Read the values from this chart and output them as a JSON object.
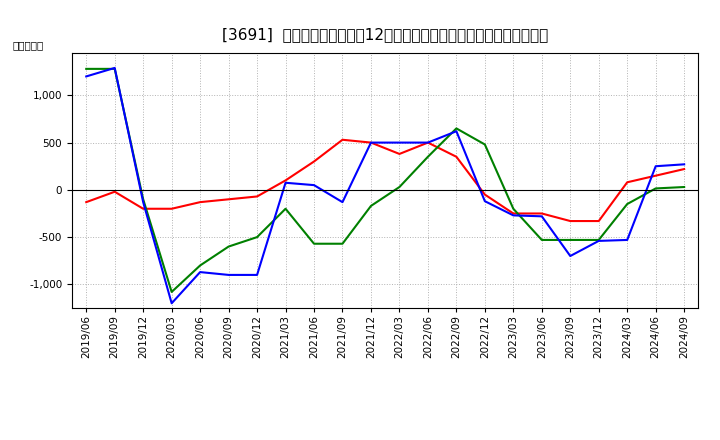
{
  "title": "[3691]  キャッシュフローの12か月移動合計の対前年同期増減額の推移",
  "ylabel": "（百万円）",
  "x_labels": [
    "2019/06",
    "2019/09",
    "2019/12",
    "2020/03",
    "2020/06",
    "2020/09",
    "2020/12",
    "2021/03",
    "2021/06",
    "2021/09",
    "2021/12",
    "2022/03",
    "2022/06",
    "2022/09",
    "2022/12",
    "2023/03",
    "2023/06",
    "2023/09",
    "2023/12",
    "2024/03",
    "2024/06",
    "2024/09"
  ],
  "営業CF": [
    -130,
    -20,
    -200,
    -200,
    -130,
    -100,
    -70,
    100,
    300,
    530,
    500,
    380,
    500,
    350,
    -50,
    -250,
    -250,
    -330,
    -330,
    80,
    150,
    220
  ],
  "投資CF": [
    1280,
    1280,
    -100,
    -1080,
    -800,
    -600,
    -500,
    -200,
    -570,
    -570,
    -170,
    30,
    350,
    650,
    480,
    -200,
    -530,
    -530,
    -530,
    -150,
    15,
    30
  ],
  "フリーCF": [
    1200,
    1290,
    -130,
    -1200,
    -870,
    -900,
    -900,
    75,
    50,
    -130,
    500,
    500,
    500,
    620,
    -120,
    -270,
    -280,
    -700,
    -540,
    -530,
    250,
    270
  ],
  "line_colors": {
    "営業CF": "#ff0000",
    "投資CF": "#008000",
    "フリーCF": "#0000ff"
  },
  "ylim": [
    -1250,
    1450
  ],
  "yticks": [
    -1000,
    -500,
    0,
    500,
    1000
  ],
  "background_color": "#ffffff",
  "plot_bg_color": "#ffffff",
  "grid_color": "#aaaaaa",
  "title_fontsize": 11,
  "axis_fontsize": 7.5,
  "legend_fontsize": 9
}
